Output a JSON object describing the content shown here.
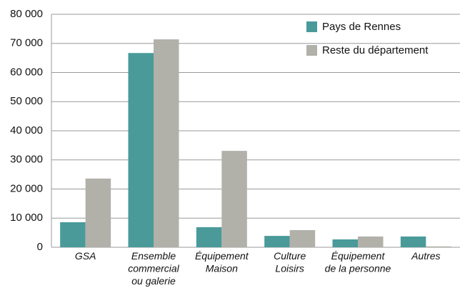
{
  "chart_data": {
    "type": "bar",
    "categories": [
      "GSA",
      "Ensemble\ncommercial\nou galerie",
      "Équipement\nMaison",
      "Culture\nLoisirs",
      "Équipement\nde la personne",
      "Autres"
    ],
    "series": [
      {
        "name": "Pays de Rennes",
        "color": "#4a9a9a",
        "values": [
          8600,
          66700,
          6900,
          3900,
          2700,
          3700
        ]
      },
      {
        "name": "Reste du département",
        "color": "#b1b1aa",
        "values": [
          23600,
          71400,
          33100,
          5900,
          3700,
          300
        ]
      }
    ],
    "ylim": [
      0,
      80000
    ],
    "yticks": [
      0,
      {
        "value": 10000,
        "label": "10 000"
      },
      {
        "value": 20000,
        "label": "20 000"
      },
      {
        "value": 30000,
        "label": "30 000"
      },
      {
        "value": 40000,
        "label": "40 000"
      },
      {
        "value": 50000,
        "label": "50 000"
      },
      {
        "value": 60000,
        "label": "60 000"
      },
      {
        "value": 70000,
        "label": "70 000"
      },
      {
        "value": 80000,
        "label": "80 000"
      }
    ],
    "grid": true,
    "legend": "upper right"
  }
}
